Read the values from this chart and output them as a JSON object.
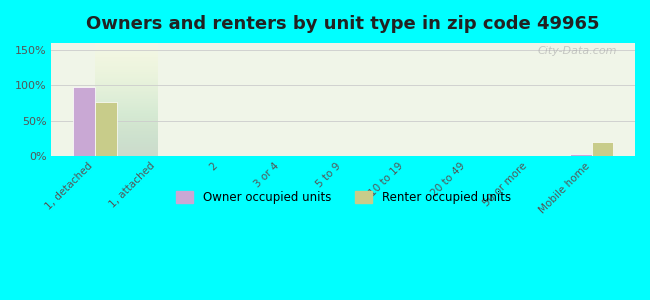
{
  "title": "Owners and renters by unit type in zip code 49965",
  "categories": [
    "1, detached",
    "1, attached",
    "2",
    "3 or 4",
    "5 to 9",
    "10 to 19",
    "20 to 49",
    "50 or more",
    "Mobile home"
  ],
  "owner_values": [
    98,
    0,
    0,
    0,
    0,
    0,
    0,
    0,
    2
  ],
  "renter_values": [
    76,
    0,
    0,
    0,
    0,
    0,
    0,
    0,
    20
  ],
  "owner_color": "#c9a8d4",
  "renter_color": "#c8cc8a",
  "background_color": "#00ffff",
  "plot_bg_top": "#f0f5e8",
  "plot_bg_bottom": "#e8f5e8",
  "yticks": [
    0,
    50,
    100,
    150
  ],
  "ylim": [
    0,
    160
  ],
  "bar_width": 0.35,
  "title_fontsize": 13,
  "watermark": "City-Data.com"
}
